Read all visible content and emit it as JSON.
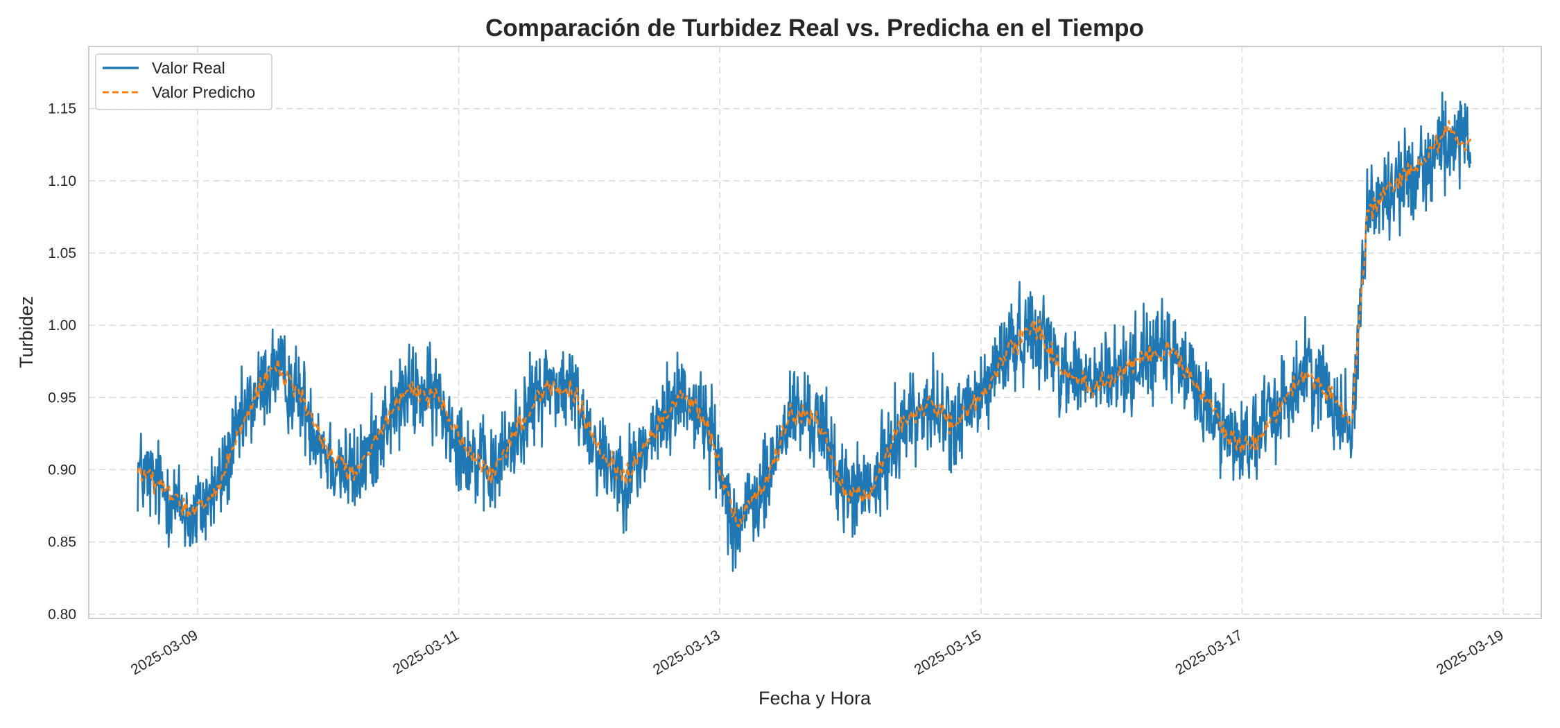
{
  "chart_data": {
    "type": "line",
    "title": "Comparación de Turbidez Real vs. Predicha en el Tiempo",
    "xlabel": "Fecha y Hora",
    "ylabel": "Turbidez",
    "xlim": [
      "2025-03-08T04:00",
      "2025-03-19T07:00"
    ],
    "ylim": [
      0.797,
      1.193
    ],
    "x_ticks": [
      "2025-03-09",
      "2025-03-11",
      "2025-03-13",
      "2025-03-15",
      "2025-03-17",
      "2025-03-19"
    ],
    "y_ticks": [
      "0.80",
      "0.85",
      "0.90",
      "0.95",
      "1.00",
      "1.05",
      "1.10",
      "1.15"
    ],
    "grid": true,
    "legend_position": "top-left",
    "x_start": "2025-03-08T13:00",
    "x_end": "2025-03-18T18:00",
    "series": [
      {
        "name": "Valor Real",
        "style": "solid",
        "color": "#1f77b4",
        "noise_amplitude": 0.035,
        "points": [
          [
            "2025-03-08T13:00",
            0.9
          ],
          [
            "2025-03-08T18:00",
            0.885
          ],
          [
            "2025-03-08T23:00",
            0.865
          ],
          [
            "2025-03-09T04:00",
            0.89
          ],
          [
            "2025-03-09T09:00",
            0.94
          ],
          [
            "2025-03-09T14:00",
            0.97
          ],
          [
            "2025-03-09T19:00",
            0.95
          ],
          [
            "2025-03-10T00:00",
            0.91
          ],
          [
            "2025-03-10T05:00",
            0.895
          ],
          [
            "2025-03-10T10:00",
            0.93
          ],
          [
            "2025-03-10T15:00",
            0.955
          ],
          [
            "2025-03-10T20:00",
            0.95
          ],
          [
            "2025-03-11T01:00",
            0.915
          ],
          [
            "2025-03-11T06:00",
            0.895
          ],
          [
            "2025-03-11T11:00",
            0.93
          ],
          [
            "2025-03-11T16:00",
            0.96
          ],
          [
            "2025-03-11T21:00",
            0.955
          ],
          [
            "2025-03-12T02:00",
            0.91
          ],
          [
            "2025-03-12T07:00",
            0.895
          ],
          [
            "2025-03-12T12:00",
            0.925
          ],
          [
            "2025-03-12T17:00",
            0.955
          ],
          [
            "2025-03-12T22:00",
            0.93
          ],
          [
            "2025-03-13T03:00",
            0.86
          ],
          [
            "2025-03-13T08:00",
            0.885
          ],
          [
            "2025-03-13T13:00",
            0.94
          ],
          [
            "2025-03-13T18:00",
            0.935
          ],
          [
            "2025-03-13T23:00",
            0.885
          ],
          [
            "2025-03-14T04:00",
            0.885
          ],
          [
            "2025-03-14T09:00",
            0.93
          ],
          [
            "2025-03-14T14:00",
            0.945
          ],
          [
            "2025-03-14T19:00",
            0.93
          ],
          [
            "2025-03-15T00:00",
            0.95
          ],
          [
            "2025-03-15T05:00",
            0.985
          ],
          [
            "2025-03-15T10:00",
            1.0
          ],
          [
            "2025-03-15T15:00",
            0.97
          ],
          [
            "2025-03-15T20:00",
            0.96
          ],
          [
            "2025-03-16T01:00",
            0.965
          ],
          [
            "2025-03-16T06:00",
            0.98
          ],
          [
            "2025-03-16T11:00",
            0.98
          ],
          [
            "2025-03-16T16:00",
            0.955
          ],
          [
            "2025-03-16T21:00",
            0.925
          ],
          [
            "2025-03-17T02:00",
            0.92
          ],
          [
            "2025-03-17T07:00",
            0.945
          ],
          [
            "2025-03-17T12:00",
            0.97
          ],
          [
            "2025-03-17T17:00",
            0.95
          ],
          [
            "2025-03-17T20:00",
            0.925
          ],
          [
            "2025-03-17T23:00",
            1.08
          ],
          [
            "2025-03-18T04:00",
            1.095
          ],
          [
            "2025-03-18T09:00",
            1.11
          ],
          [
            "2025-03-18T14:00",
            1.13
          ],
          [
            "2025-03-18T18:00",
            1.12
          ]
        ]
      },
      {
        "name": "Valor Predicho",
        "style": "dashed",
        "color": "#ff7f0e",
        "noise_amplitude": 0.008,
        "points": [
          [
            "2025-03-08T13:00",
            0.9
          ],
          [
            "2025-03-08T18:00",
            0.886
          ],
          [
            "2025-03-08T23:00",
            0.868
          ],
          [
            "2025-03-09T04:00",
            0.888
          ],
          [
            "2025-03-09T09:00",
            0.938
          ],
          [
            "2025-03-09T14:00",
            0.972
          ],
          [
            "2025-03-09T19:00",
            0.952
          ],
          [
            "2025-03-10T00:00",
            0.912
          ],
          [
            "2025-03-10T05:00",
            0.896
          ],
          [
            "2025-03-10T10:00",
            0.93
          ],
          [
            "2025-03-10T15:00",
            0.956
          ],
          [
            "2025-03-10T20:00",
            0.95
          ],
          [
            "2025-03-11T01:00",
            0.916
          ],
          [
            "2025-03-11T06:00",
            0.896
          ],
          [
            "2025-03-11T11:00",
            0.93
          ],
          [
            "2025-03-11T16:00",
            0.958
          ],
          [
            "2025-03-11T21:00",
            0.954
          ],
          [
            "2025-03-12T02:00",
            0.91
          ],
          [
            "2025-03-12T07:00",
            0.896
          ],
          [
            "2025-03-12T12:00",
            0.926
          ],
          [
            "2025-03-12T17:00",
            0.954
          ],
          [
            "2025-03-12T22:00",
            0.93
          ],
          [
            "2025-03-13T03:00",
            0.862
          ],
          [
            "2025-03-13T08:00",
            0.886
          ],
          [
            "2025-03-13T13:00",
            0.94
          ],
          [
            "2025-03-13T18:00",
            0.934
          ],
          [
            "2025-03-13T23:00",
            0.884
          ],
          [
            "2025-03-14T04:00",
            0.886
          ],
          [
            "2025-03-14T09:00",
            0.93
          ],
          [
            "2025-03-14T14:00",
            0.946
          ],
          [
            "2025-03-14T19:00",
            0.93
          ],
          [
            "2025-03-15T00:00",
            0.95
          ],
          [
            "2025-03-15T05:00",
            0.984
          ],
          [
            "2025-03-15T10:00",
            1.0
          ],
          [
            "2025-03-15T15:00",
            0.968
          ],
          [
            "2025-03-15T20:00",
            0.958
          ],
          [
            "2025-03-16T01:00",
            0.964
          ],
          [
            "2025-03-16T06:00",
            0.98
          ],
          [
            "2025-03-16T11:00",
            0.982
          ],
          [
            "2025-03-16T16:00",
            0.956
          ],
          [
            "2025-03-16T21:00",
            0.924
          ],
          [
            "2025-03-17T02:00",
            0.918
          ],
          [
            "2025-03-17T07:00",
            0.944
          ],
          [
            "2025-03-17T12:00",
            0.968
          ],
          [
            "2025-03-17T17:00",
            0.95
          ],
          [
            "2025-03-17T20:00",
            0.928
          ],
          [
            "2025-03-17T23:00",
            1.075
          ],
          [
            "2025-03-18T04:00",
            1.098
          ],
          [
            "2025-03-18T09:00",
            1.112
          ],
          [
            "2025-03-18T14:00",
            1.138
          ],
          [
            "2025-03-18T18:00",
            1.122
          ]
        ]
      }
    ]
  },
  "colors": {
    "real": "#1f77b4",
    "predicted": "#ff7f0e",
    "grid": "#d9d9d9",
    "frame": "#cccccc",
    "text": "#262626"
  }
}
